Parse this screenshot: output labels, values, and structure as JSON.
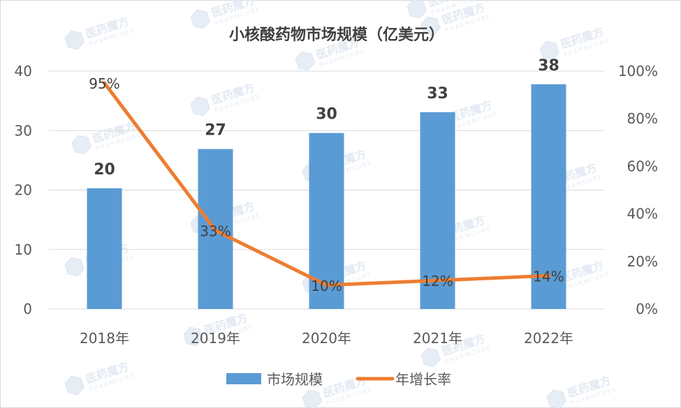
{
  "chart_data": {
    "type": "bar",
    "title": "小核酸药物市场规模（亿美元）",
    "categories": [
      "2018年",
      "2019年",
      "2020年",
      "2021年",
      "2022年"
    ],
    "series": [
      {
        "name": "市场规模",
        "type": "bar",
        "axis": "left",
        "values": [
          20.3,
          26.9,
          29.6,
          33.1,
          37.8
        ],
        "labels": [
          "20",
          "27",
          "30",
          "33",
          "38"
        ],
        "color": "#5b9bd5"
      },
      {
        "name": "年增长率",
        "type": "line",
        "axis": "right",
        "values": [
          95,
          33,
          10,
          12,
          14
        ],
        "labels": [
          "95%",
          "33%",
          "10%",
          "12%",
          "14%"
        ],
        "color": "#ed7d31"
      }
    ],
    "y_left": {
      "min": 0,
      "max": 40,
      "ticks": [
        "0",
        "10",
        "20",
        "30",
        "40"
      ]
    },
    "y_right": {
      "min": 0,
      "max": 100,
      "ticks": [
        "0%",
        "20%",
        "40%",
        "60%",
        "80%",
        "100%"
      ]
    },
    "grid": true,
    "legend_position": "bottom",
    "watermark": {
      "text": "医药魔方",
      "subtext": "PHARMCUBE"
    }
  }
}
